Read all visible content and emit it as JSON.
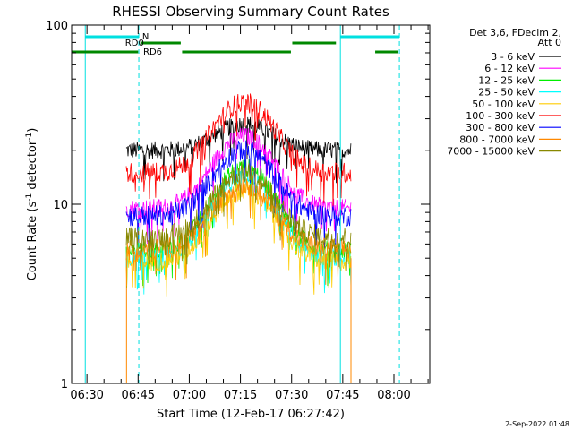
{
  "chart_data": {
    "type": "line",
    "title": "RHESSI Observing Summary Count Rates",
    "xlabel": "Start Time (12-Feb-17 06:27:42)",
    "ylabel_main": "Count Rate (s",
    "ylabel_sup1": "-1",
    "ylabel_mid": " detector",
    "ylabel_sup2": "-1",
    "ylabel_end": ")",
    "y_scale": "log",
    "ylim": [
      1,
      100
    ],
    "y_ticks": [
      {
        "value": 1,
        "label": "1"
      },
      {
        "value": 10,
        "label": "10"
      },
      {
        "value": 100,
        "label": "100"
      }
    ],
    "x_ticks": [
      {
        "minutes": 390,
        "label": "06:30"
      },
      {
        "minutes": 405,
        "label": "06:45"
      },
      {
        "minutes": 420,
        "label": "07:00"
      },
      {
        "minutes": 435,
        "label": "07:15"
      },
      {
        "minutes": 450,
        "label": "07:30"
      },
      {
        "minutes": 465,
        "label": "07:45"
      },
      {
        "minutes": 480,
        "label": "08:00"
      }
    ],
    "legend_title": [
      "Det 3,6, FDecim 2,",
      "Att 0"
    ],
    "legend_placement": "right",
    "series": [
      {
        "name": "3 - 6 keV",
        "color": "#000000",
        "base": 20,
        "peak": 28
      },
      {
        "name": "6 - 12 keV",
        "color": "#ff00ff",
        "base": 9.5,
        "peak": 24
      },
      {
        "name": "12 - 25 keV",
        "color": "#00ee00",
        "base": 5.5,
        "peak": 16
      },
      {
        "name": "25 - 50 keV",
        "color": "#00ffff",
        "base": 5,
        "peak": 14
      },
      {
        "name": "50 - 100 keV",
        "color": "#ffcc00",
        "base": 4.8,
        "peak": 12
      },
      {
        "name": "100 - 300 keV",
        "color": "#ff0000",
        "base": 15,
        "peak": 37
      },
      {
        "name": "300 - 800 keV",
        "color": "#0000ff",
        "base": 8.6,
        "peak": 20
      },
      {
        "name": "800 - 7000 keV",
        "color": "#ff8800",
        "base": 5.6,
        "peak": 13
      },
      {
        "name": "7000 - 15000 keV",
        "color": "#888800",
        "base": 6.5,
        "peak": 15
      }
    ],
    "data_start_minutes": 401.5,
    "data_end_minutes": 467.5,
    "peak_minutes": 436,
    "markers": {
      "night_lines_minutes": [
        389.5,
        464.3
      ],
      "saa_lines_minutes": [
        405.2,
        481.6
      ],
      "N_label": "N",
      "RD0_label": "RD0",
      "RD6_label": "RD6"
    },
    "footer_date": "2-Sep-2022 01:48"
  }
}
